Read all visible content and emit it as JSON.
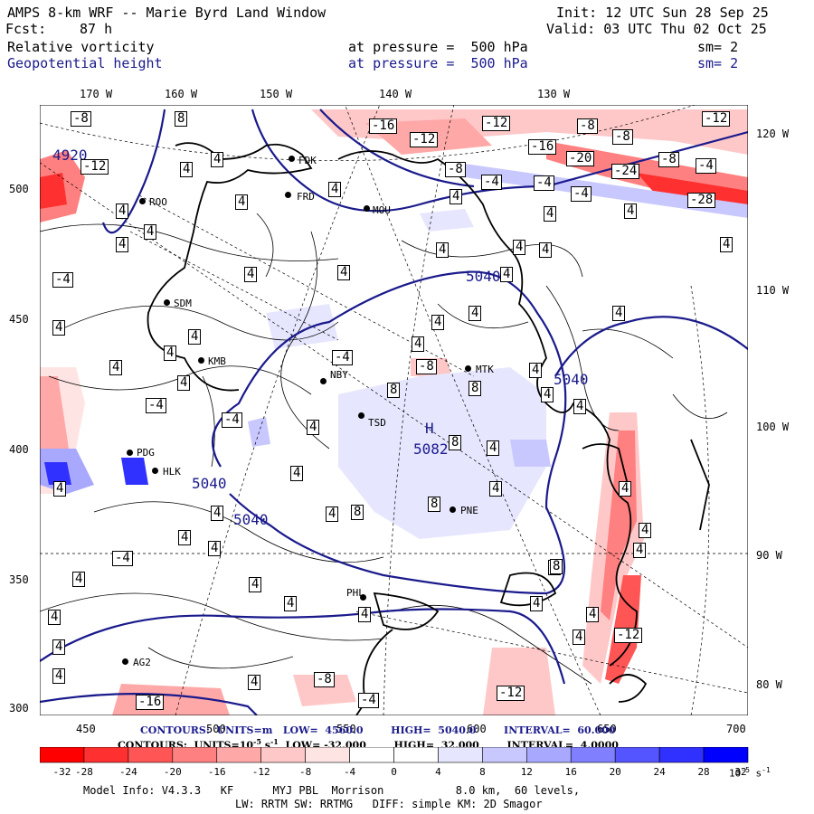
{
  "header": {
    "title": "AMPS 8-km WRF -- Marie Byrd Land Window",
    "init": "Init: 12 UTC Sun 28 Sep 25",
    "forecast_label": "Fcst:",
    "forecast_hours": "87 h",
    "valid": "Valid: 03 UTC Thu 02 Oct 25",
    "field1": "Relative vorticity",
    "field2": "Geopotential height",
    "pressure1": "at pressure =  500 hPa",
    "pressure2": "at pressure =  500 hPa",
    "smooth1": "sm= 2",
    "smooth2": "sm= 2"
  },
  "axes": {
    "top_lon": [
      "170 W",
      "160 W",
      "150 W",
      "140 W",
      "130 W"
    ],
    "right_lon": [
      "120 W",
      "110 W",
      "100 W",
      "90 W",
      "80 W"
    ],
    "left_y": [
      "500",
      "450",
      "400",
      "350",
      "300"
    ],
    "bottom_x": [
      "450",
      "500",
      "550",
      "600",
      "650",
      "700"
    ]
  },
  "stations": [
    "FDK",
    "FRD",
    "ROO",
    "MOU",
    "SDM",
    "KMB",
    "NBY",
    "MTK",
    "TSD",
    "PDG",
    "HLK",
    "PNE",
    "PHL",
    "AG2"
  ],
  "height_labels": [
    "4920",
    "5040",
    "5040",
    "5040",
    "5040",
    "H",
    "5082"
  ],
  "vort_boxes": [
    "-8",
    "8",
    "-16",
    "-12",
    "-12",
    "-8",
    "-8",
    "-12",
    "-16",
    "-20",
    "-24",
    "-8",
    "-4",
    "-28",
    "-12",
    "4",
    "-8",
    "-4",
    "-4",
    "-4",
    "4",
    "4",
    "4",
    "4",
    "4",
    "4",
    "4",
    "4",
    "4",
    "4",
    "4",
    "4",
    "-4",
    "4",
    "4",
    "4",
    "4",
    "4",
    "4",
    "4",
    "4",
    "4",
    "4",
    "-4",
    "4",
    "4",
    "-8",
    "8",
    "8",
    "4",
    "-4",
    "4",
    "4",
    "4",
    "4",
    "4",
    "4",
    "4",
    "8",
    "8",
    "4",
    "4",
    "-4",
    "4",
    "4",
    "4",
    "4",
    "4",
    "-4",
    "4",
    "4",
    "4",
    "4",
    "8",
    "4",
    "4",
    "4",
    "-8",
    "-4",
    "-16",
    "-12",
    "-12",
    "4",
    "4",
    "4",
    "4",
    "8",
    "4",
    "8",
    "4"
  ],
  "footer": {
    "contours_height": "CONTOURS:  UNITS=m   LOW=  4560.0        HIGH=  5040.0        INTERVAL=  60.000",
    "contours_vort_a": "CONTOURS:  UNITS=10",
    "contours_vort_b": "-5",
    "contours_vort_c": " s",
    "contours_vort_d": "-1",
    "contours_vort_e": "  LOW= -32.000        HIGH=  32.000        INTERVAL=  4.0000",
    "model_info": "Model Info: V4.3.3   KF      MYJ PBL  Morrison           8.0 km,  60 levels,",
    "model_info2": "LW: RRTM SW: RRTMG   DIFF: simple KM: 2D Smagor",
    "colorbar_unit": "10",
    "colorbar_unit_exp": "-5",
    "colorbar_unit_s": " s",
    "colorbar_unit_exp2": "-1"
  },
  "colorbar": {
    "colors": [
      "#ff0000",
      "#ff3030",
      "#ff5555",
      "#ff8080",
      "#ffa8a8",
      "#ffc8c8",
      "#ffe4e4",
      "#ffffff",
      "#ffffff",
      "#e6e6ff",
      "#c8c8ff",
      "#a8a8ff",
      "#8080ff",
      "#5555ff",
      "#3030ff",
      "#0000ff"
    ],
    "ticks": [
      "-32",
      "-28",
      "-24",
      "-20",
      "-16",
      "-12",
      "-8",
      "-4",
      "0",
      "4",
      "8",
      "12",
      "16",
      "20",
      "24",
      "28",
      "32"
    ]
  }
}
